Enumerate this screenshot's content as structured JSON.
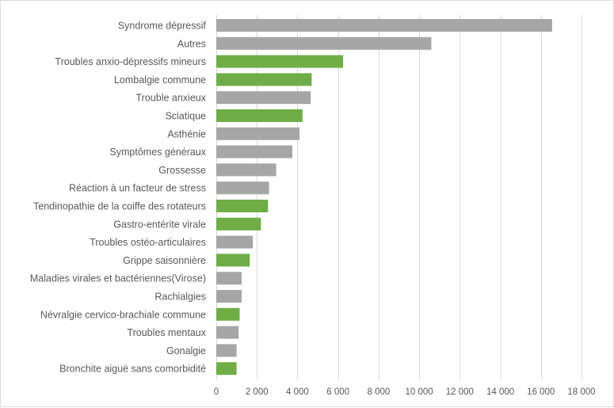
{
  "chart_data": {
    "type": "bar",
    "orientation": "horizontal",
    "categories": [
      "Syndrome dépressif",
      "Autres",
      "Troubles anxio-dépressifs mineurs",
      "Lombalgie commune",
      "Trouble anxieux",
      "Sciatique",
      "Asthénie",
      "Symptômes généraux",
      "Grossesse",
      "Réaction à un facteur de stress",
      "Tendinopathie de la coiffe des rotateurs",
      "Gastro-entérite virale",
      "Troubles ostéo-articulaires",
      "Grippe saisonnière",
      "Maladies virales et bactériennes(Virose)",
      "Rachialgies",
      "Névralgie cervico-brachiale commune",
      "Troubles mentaux",
      "Gonalgie",
      "Bronchite aiguë sans comorbidité"
    ],
    "values": [
      16550,
      10600,
      6250,
      4700,
      4650,
      4250,
      4100,
      3750,
      2950,
      2600,
      2550,
      2200,
      1800,
      1650,
      1250,
      1250,
      1150,
      1100,
      1000,
      1000
    ],
    "colors": [
      "#a6a6a6",
      "#a6a6a6",
      "#70ad47",
      "#70ad47",
      "#a6a6a6",
      "#70ad47",
      "#a6a6a6",
      "#a6a6a6",
      "#a6a6a6",
      "#a6a6a6",
      "#70ad47",
      "#70ad47",
      "#a6a6a6",
      "#70ad47",
      "#a6a6a6",
      "#a6a6a6",
      "#70ad47",
      "#a6a6a6",
      "#a6a6a6",
      "#70ad47"
    ],
    "xlim": [
      0,
      18000
    ],
    "xticks": [
      0,
      2000,
      4000,
      6000,
      8000,
      10000,
      12000,
      14000,
      16000,
      18000
    ],
    "xtick_labels": [
      "0",
      "2 000",
      "4 000",
      "6 000",
      "8 000",
      "10 000",
      "12 000",
      "14 000",
      "16 000",
      "18 000"
    ],
    "grid": "vertical",
    "legend": "none"
  }
}
